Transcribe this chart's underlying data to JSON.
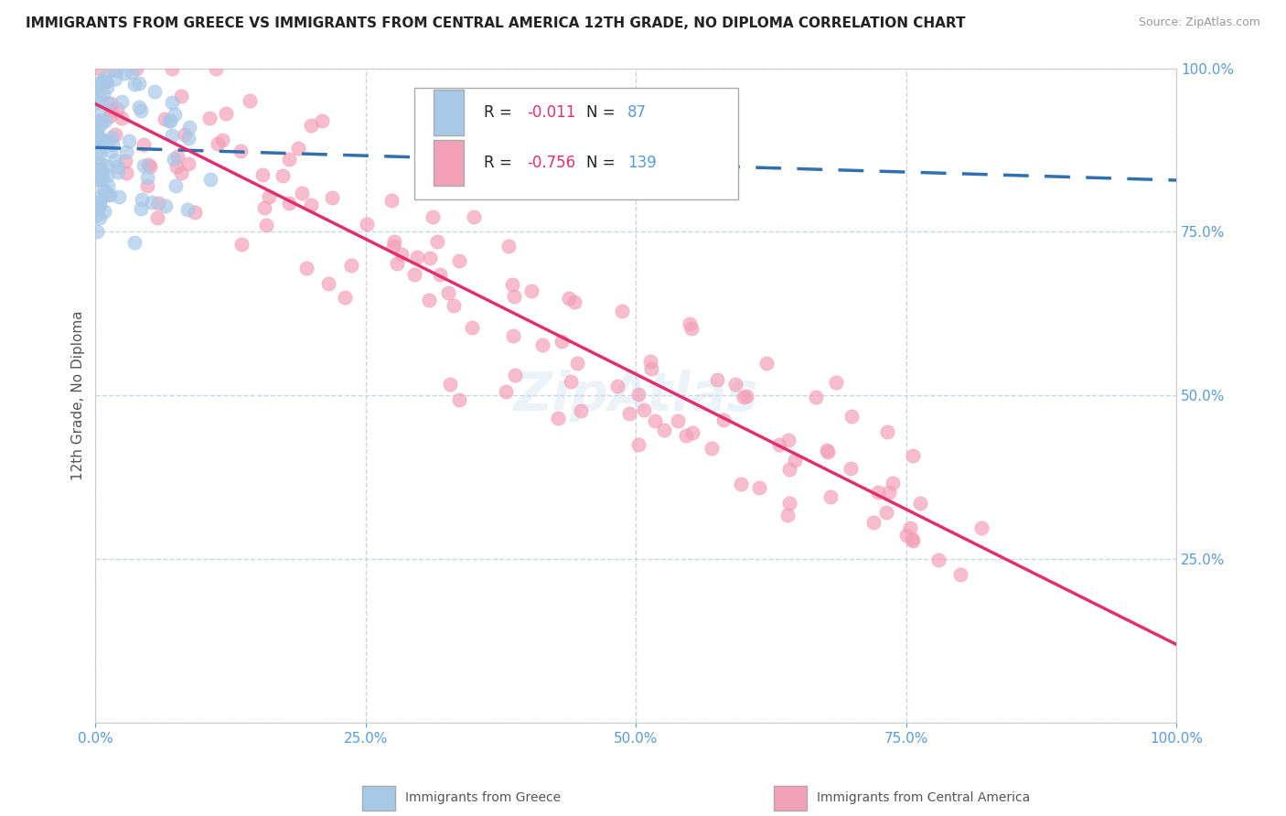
{
  "title": "IMMIGRANTS FROM GREECE VS IMMIGRANTS FROM CENTRAL AMERICA 12TH GRADE, NO DIPLOMA CORRELATION CHART",
  "source": "Source: ZipAtlas.com",
  "ylabel": "12th Grade, No Diploma",
  "legend_label_1": "Immigrants from Greece",
  "legend_label_2": "Immigrants from Central America",
  "R1": -0.011,
  "N1": 87,
  "R2": -0.756,
  "N2": 139,
  "color_blue": "#a8c8e8",
  "color_pink": "#f4a0b8",
  "color_line_blue": "#3070b0",
  "color_line_pink": "#e03070",
  "title_fontsize": 11,
  "source_fontsize": 9,
  "background_color": "#ffffff",
  "grid_color": "#bbccdd",
  "tick_color": "#5b9bd5",
  "seed": 42
}
